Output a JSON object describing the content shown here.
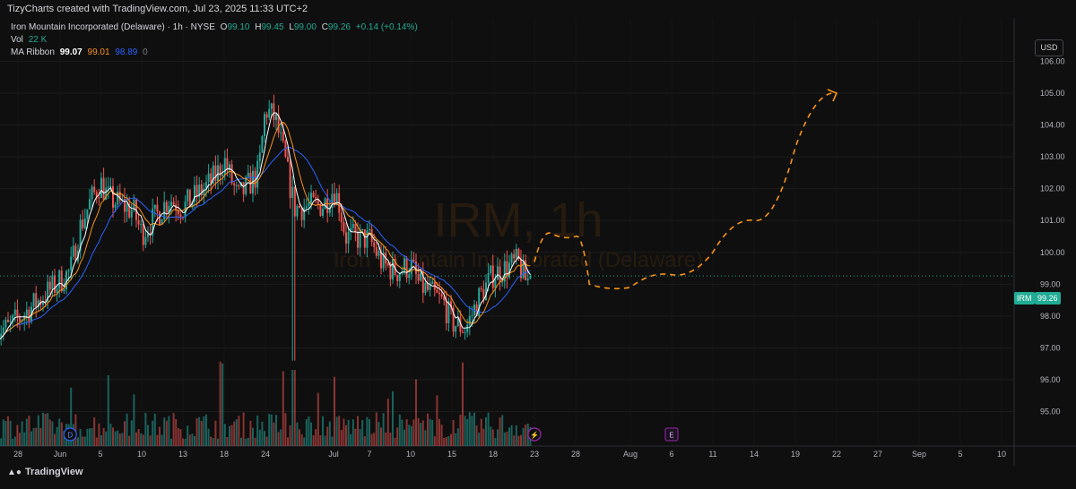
{
  "header": {
    "caption": "TizyCharts created with TradingView.com, Jul 23, 2025 11:33 UTC+2"
  },
  "legend": {
    "symbol_line": "Iron Mountain Incorporated (Delaware) · 1h · NYSE",
    "o_label": "O",
    "o_value": "99.10",
    "h_label": "H",
    "h_value": "99.45",
    "l_label": "L",
    "l_value": "99.00",
    "c_label": "C",
    "c_value": "99.26",
    "change": "+0.14 (+0.14%)",
    "vol_label": "Vol",
    "vol_value": "22 K",
    "ma_label": "MA Ribbon",
    "ma_values": [
      "99.07",
      "99.01",
      "98.89"
    ],
    "ma_suffix": "0"
  },
  "watermark": {
    "symbol": "IRM, 1h",
    "name": "Iron Mountain Incorporated (Delaware)"
  },
  "price_label": {
    "symbol": "IRM",
    "price": "99.26"
  },
  "currency_button": "USD",
  "brand": "TradingView",
  "event_markers": [
    {
      "label": "D",
      "x_date": "Jun 2",
      "color": "#2962ff"
    },
    {
      "label": "⚡",
      "x_date": "Jul 23",
      "color": "#9c27b0"
    },
    {
      "label": "E",
      "x_date": "Aug 6",
      "color": "#9c27b0"
    }
  ],
  "colors": {
    "up": "#26a69a",
    "down": "#ef5350",
    "ma_white": "#ffffff",
    "ma_orange": "#f7931a",
    "ma_blue": "#2962ff",
    "projection": "#f7931a",
    "last_price": "#22ab94"
  },
  "chart_data": {
    "type": "candlestick",
    "title": "Iron Mountain Incorporated (Delaware) · 1h · NYSE",
    "ylim": [
      94.2,
      106.8
    ],
    "y_ticks": [
      "106.00",
      "105.00",
      "104.00",
      "103.00",
      "102.00",
      "101.00",
      "100.00",
      "99.00",
      "98.00",
      "97.00",
      "96.00",
      "95.00"
    ],
    "x_tick_labels": [
      "28",
      "Jun",
      "5",
      "10",
      "13",
      "18",
      "24",
      "Jul",
      "7",
      "10",
      "15",
      "18",
      "23",
      "28",
      "Aug",
      "6",
      "11",
      "14",
      "19",
      "22",
      "27",
      "Sep",
      "5",
      "10"
    ],
    "price_path": [
      [
        "May 27",
        97.6
      ],
      [
        "May 28",
        97.9
      ],
      [
        "May 29",
        98.2
      ],
      [
        "May 30",
        98.5
      ],
      [
        "Jun 2",
        99.4
      ],
      [
        "Jun 3",
        100.8
      ],
      [
        "Jun 4",
        101.6
      ],
      [
        "Jun 5",
        102.2
      ],
      [
        "Jun 6",
        101.7
      ],
      [
        "Jun 9",
        101.3
      ],
      [
        "Jun 10",
        100.6
      ],
      [
        "Jun 11",
        101.1
      ],
      [
        "Jun 12",
        101.7
      ],
      [
        "Jun 13",
        101.4
      ],
      [
        "Jun 16",
        102.1
      ],
      [
        "Jun 17",
        102.4
      ],
      [
        "Jun 18",
        102.9
      ],
      [
        "Jun 20",
        101.7
      ],
      [
        "Jun 23",
        102.5
      ],
      [
        "Jun 24",
        104.5
      ],
      [
        "Jun 25",
        104.2
      ],
      [
        "Jun 26",
        102.9
      ],
      [
        "Jun 27",
        101.4
      ],
      [
        "Jun 30",
        101.5
      ],
      [
        "Jul 1",
        102.0
      ],
      [
        "Jul 2",
        101.5
      ],
      [
        "Jul 3",
        100.5
      ],
      [
        "Jul 7",
        100.4
      ],
      [
        "Jul 8",
        99.6
      ],
      [
        "Jul 9",
        99.4
      ],
      [
        "Jul 10",
        99.6
      ],
      [
        "Jul 11",
        99.0
      ],
      [
        "Jul 14",
        98.4
      ],
      [
        "Jul 15",
        97.8
      ],
      [
        "Jul 16",
        97.6
      ],
      [
        "Jul 17",
        98.6
      ],
      [
        "Jul 18",
        99.3
      ],
      [
        "Jul 21",
        99.7
      ],
      [
        "Jul 22",
        99.1
      ],
      [
        "Jul 23",
        99.26
      ]
    ],
    "last_close": 99.26,
    "projection_path": [
      [
        "Jul 23",
        99.7
      ],
      [
        "Jul 25",
        100.6
      ],
      [
        "Jul 28",
        100.5
      ],
      [
        "Jul 29",
        99.0
      ],
      [
        "Aug 1",
        98.9
      ],
      [
        "Aug 6",
        99.3
      ],
      [
        "Aug 11",
        100.0
      ],
      [
        "Aug 14",
        101.0
      ],
      [
        "Aug 19",
        103.3
      ],
      [
        "Aug 22",
        105.0
      ]
    ]
  }
}
